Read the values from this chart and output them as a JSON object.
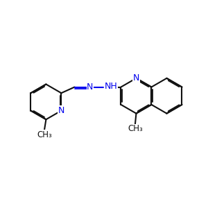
{
  "bg_color": "#ffffff",
  "bond_color": "#111111",
  "nitrogen_color": "#0000ee",
  "lw": 1.5,
  "fs": 9.0,
  "dbl_off": 0.055,
  "xlim": [
    0.2,
    9.8
  ],
  "ylim": [
    2.8,
    7.2
  ]
}
